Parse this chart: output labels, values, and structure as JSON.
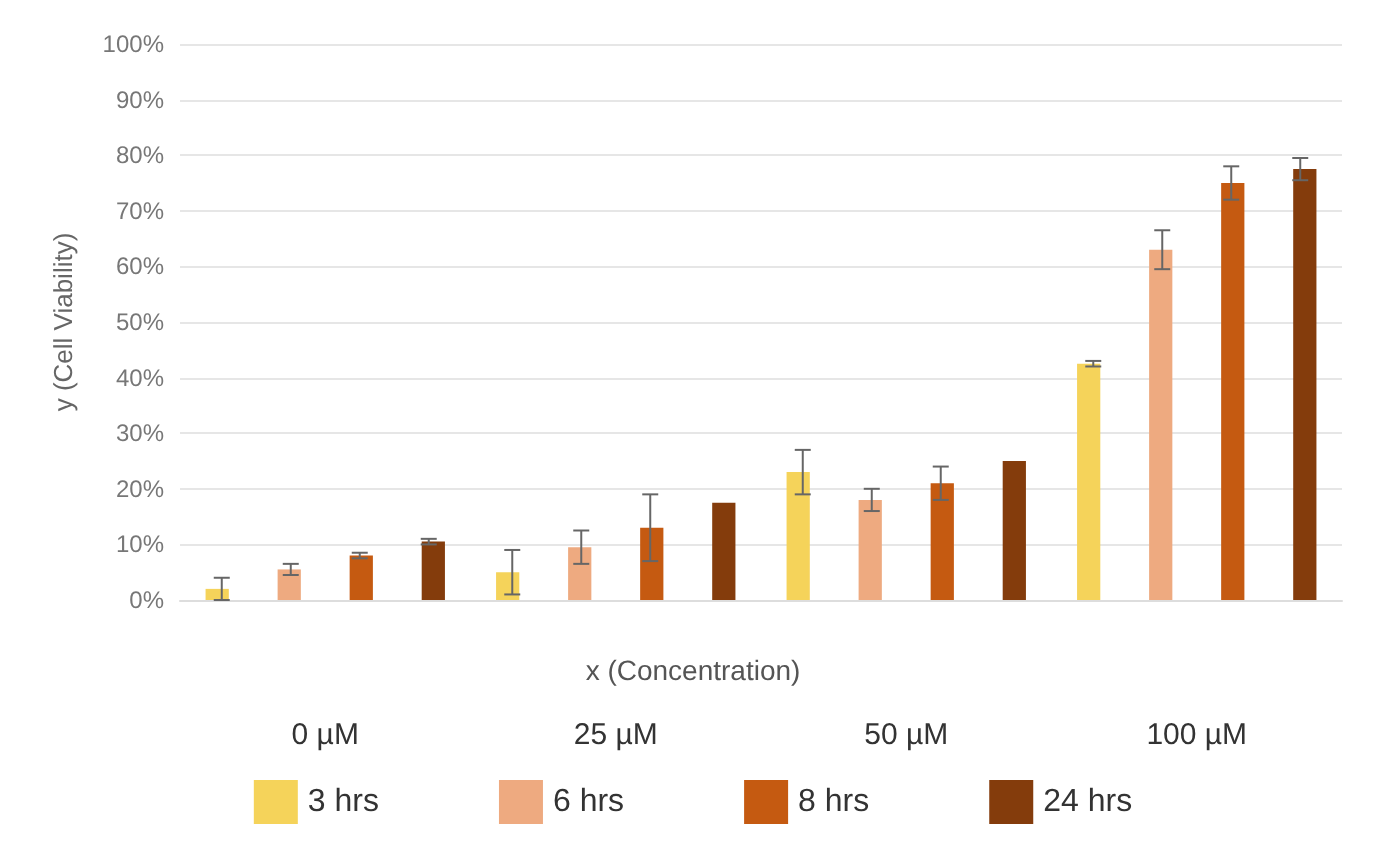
{
  "chart_data": {
    "type": "bar",
    "xlabel": "x (Concentration)",
    "ylabel": "y (Cell Viability)",
    "categories": [
      "0 µM",
      "25 µM",
      "50 µM",
      "100 µM"
    ],
    "series": [
      {
        "name": "3 hrs",
        "color": "#f5d35a",
        "values": [
          2,
          5,
          23,
          42.5
        ],
        "errors": [
          2,
          4,
          4,
          0.5
        ]
      },
      {
        "name": "6 hrs",
        "color": "#eeaa80",
        "values": [
          5.5,
          9.5,
          18,
          63
        ],
        "errors": [
          1,
          3,
          2,
          3.5
        ]
      },
      {
        "name": "8 hrs",
        "color": "#c55a11",
        "values": [
          8,
          13,
          21,
          75
        ],
        "errors": [
          0.5,
          6,
          3,
          3
        ]
      },
      {
        "name": "24 hrs",
        "color": "#843c0c",
        "values": [
          10.5,
          17.5,
          25,
          77.5
        ],
        "errors": [
          0.5,
          null,
          null,
          2
        ]
      }
    ],
    "ylim": [
      0,
      100
    ],
    "yticks": [
      {
        "value": 0,
        "label": "0%"
      },
      {
        "value": 10,
        "label": "10%"
      },
      {
        "value": 20,
        "label": "20%"
      },
      {
        "value": 30,
        "label": "30%"
      },
      {
        "value": 40,
        "label": "40%"
      },
      {
        "value": 50,
        "label": "50%"
      },
      {
        "value": 60,
        "label": "60%"
      },
      {
        "value": 70,
        "label": "70%"
      },
      {
        "value": 80,
        "label": "80%"
      },
      {
        "value": 90,
        "label": "90%"
      },
      {
        "value": 100,
        "label": "100%"
      }
    ],
    "grid": "y",
    "legend": "bottom"
  }
}
